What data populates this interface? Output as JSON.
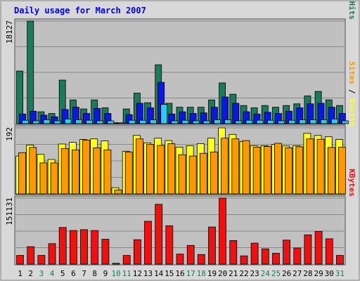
{
  "colors": {
    "hits": "#1a7a5a",
    "files": "#0a18e0",
    "pages": "#33c8ee",
    "visits": "#ffff22",
    "sites": "#ff9900",
    "kbytes": "#ee1111",
    "frame_bg": "#d8d8d8",
    "plot_bg": "#c0c0c0",
    "title": "#0000cc",
    "weekend_label": "#1a7a5a",
    "weekday_label": "#000000"
  },
  "chart_data": {
    "title": "Daily usage for March 2007",
    "type": "bar",
    "x": [
      "1",
      "2",
      "3",
      "4",
      "5",
      "6",
      "7",
      "8",
      "9",
      "10",
      "11",
      "12",
      "13",
      "14",
      "15",
      "16",
      "17",
      "18",
      "19",
      "20",
      "21",
      "22",
      "23",
      "24",
      "25",
      "26",
      "27",
      "28",
      "29",
      "30",
      "31"
    ],
    "weekend_days": [
      "3",
      "4",
      "10",
      "11",
      "17",
      "18",
      "24",
      "25",
      "31"
    ],
    "panels": [
      {
        "axis_label": "18127",
        "ymax": 18127,
        "legend": [
          {
            "text": "Pages",
            "color_key": "pages"
          },
          {
            "text": " / ",
            "color_key": "weekday_label"
          },
          {
            "text": "Files",
            "color_key": "files"
          },
          {
            "text": " / ",
            "color_key": "weekday_label"
          },
          {
            "text": "Hits",
            "color_key": "hits"
          }
        ],
        "series": [
          {
            "key": "hits",
            "values": [
              9300,
              18127,
              2100,
              1800,
              7700,
              4200,
              2600,
              4200,
              2800,
              150,
              2600,
              5400,
              3700,
              10400,
              3600,
              2900,
              2900,
              2900,
              4200,
              7200,
              5200,
              3200,
              2800,
              3200,
              2900,
              3200,
              3500,
              4900,
              5700,
              4200,
              3200
            ]
          },
          {
            "key": "files",
            "values": [
              1700,
              2200,
              1500,
              1200,
              2500,
              2900,
              1800,
              2700,
              1800,
              150,
              1600,
              3600,
              2800,
              7300,
              1700,
              2100,
              1800,
              1900,
              2900,
              4700,
              3600,
              2100,
              1700,
              2000,
              1800,
              2200,
              2800,
              3500,
              3600,
              2900,
              1800
            ]
          },
          {
            "key": "pages",
            "values": [
              600,
              500,
              700,
              500,
              800,
              700,
              600,
              500,
              500,
              150,
              600,
              600,
              700,
              3400,
              500,
              600,
              500,
              500,
              700,
              700,
              500,
              600,
              600,
              600,
              500,
              600,
              700,
              700,
              700,
              800,
              500
            ]
          }
        ]
      },
      {
        "axis_label": "192",
        "ymax": 192,
        "legend": [
          {
            "text": "Sites",
            "color_key": "sites"
          },
          {
            "text": " / ",
            "color_key": "weekday_label"
          },
          {
            "text": "Visits",
            "color_key": "visits"
          }
        ],
        "series": [
          {
            "key": "visits",
            "values": [
              110,
              142,
              115,
              100,
              145,
              150,
              158,
              160,
              154,
              18,
              124,
              170,
              148,
              162,
              155,
              136,
              140,
              146,
              162,
              192,
              173,
              152,
              140,
              140,
              144,
              139,
              140,
              176,
              170,
              166,
              158
            ]
          },
          {
            "key": "sites",
            "values": [
              120,
              135,
              90,
              90,
              132,
              128,
              156,
              134,
              128,
              11,
              122,
              160,
              144,
              141,
              146,
              114,
              110,
              118,
              122,
              162,
              160,
              155,
              136,
              138,
              147,
              134,
              137,
              160,
              159,
              135,
              136
            ]
          }
        ]
      },
      {
        "axis_label": "151131",
        "ymax": 151131,
        "legend": [
          {
            "text": "KBytes",
            "color_key": "kbytes"
          }
        ],
        "series": [
          {
            "key": "kbytes",
            "values": [
              20000,
              40000,
              20000,
              47000,
              84000,
              77000,
              79000,
              77000,
              57000,
              2000,
              20000,
              56000,
              98000,
              137000,
              88000,
              23000,
              43000,
              22000,
              85000,
              151131,
              54000,
              19000,
              48000,
              35000,
              25000,
              55000,
              37000,
              67000,
              75000,
              58000,
              20000
            ]
          }
        ]
      }
    ]
  }
}
